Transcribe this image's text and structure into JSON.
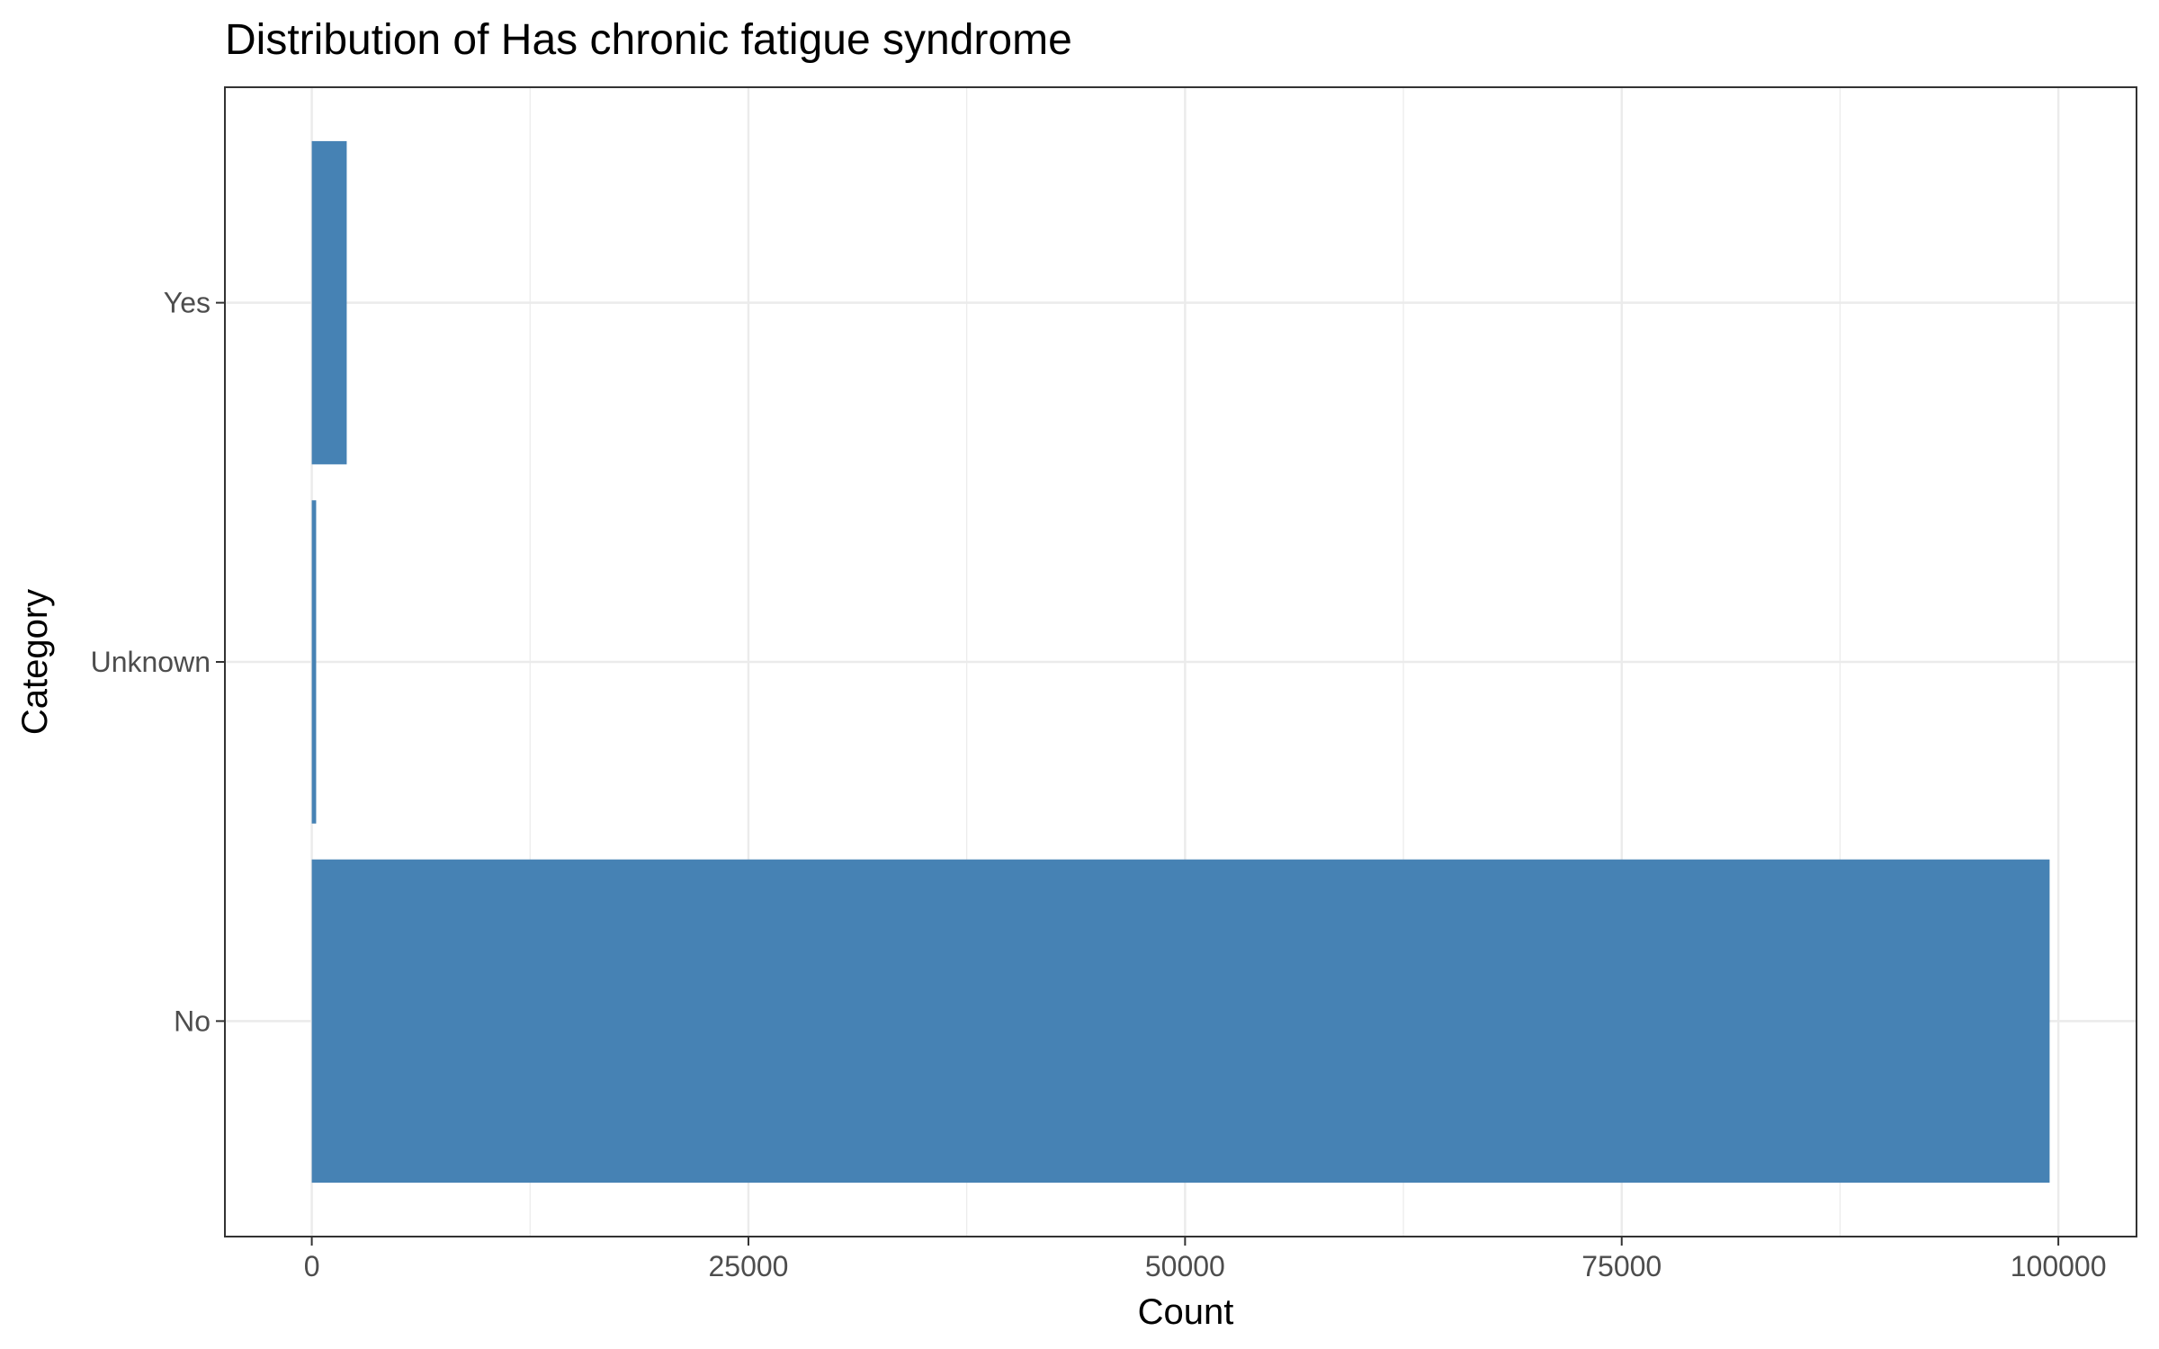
{
  "chart_data": {
    "type": "bar",
    "orientation": "horizontal",
    "title": "Distribution of Has chronic fatigue syndrome",
    "xlabel": "Count",
    "ylabel": "Category",
    "categories": [
      "No",
      "Unknown",
      "Yes"
    ],
    "values": [
      99500,
      250,
      2000
    ],
    "xlim": [
      -4975,
      104475
    ],
    "x_ticks": [
      0,
      25000,
      50000,
      75000,
      100000
    ],
    "x_tick_labels": [
      "0",
      "25000",
      "50000",
      "75000",
      "100000"
    ],
    "grid": true,
    "legend": "none",
    "bar_color": "#4682b4",
    "grid_color": "#ebebeb",
    "panel_border_color": "#333333"
  }
}
